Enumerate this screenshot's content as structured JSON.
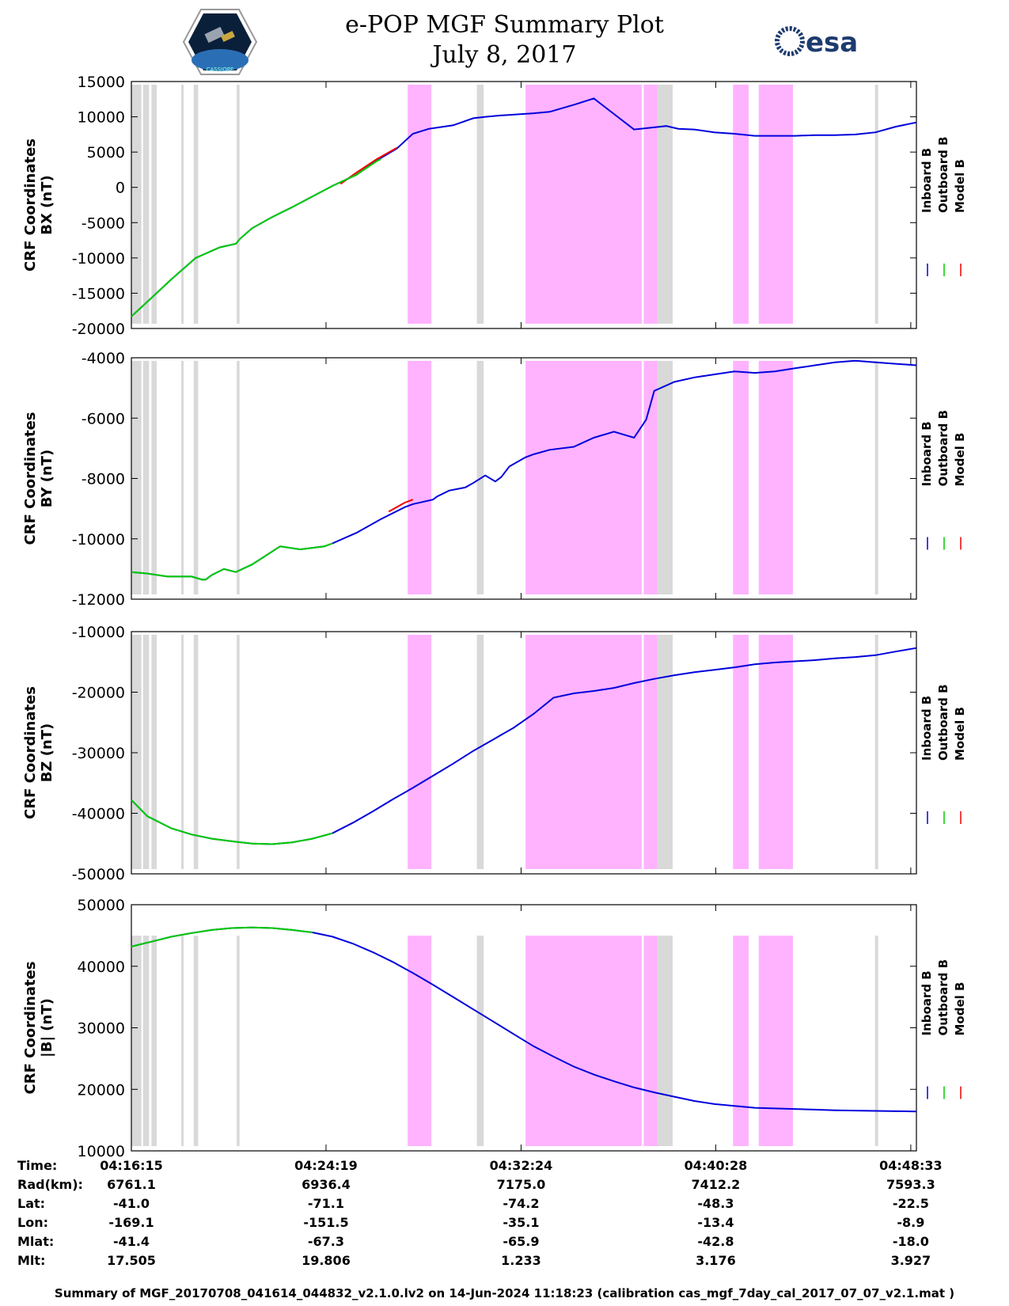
{
  "header": {
    "title_line1": "e-POP MGF Summary Plot",
    "title_line2": "July 8, 2017",
    "logo_left_text": "CASSIOPE",
    "logo_right_text": "esa"
  },
  "colors": {
    "inboard": "#0000dd",
    "outboard": "#00cc00",
    "model": "#ee0000",
    "gray_band": "#d9d9d9",
    "pink_band": "#ffb3ff"
  },
  "chart_data": {
    "type": "line",
    "x_unit": "seconds since 04:16:15",
    "x_range": [
      0,
      1952
    ],
    "gray_intervals": [
      [
        0,
        25
      ],
      [
        29,
        44
      ],
      [
        50,
        63
      ],
      [
        124,
        130
      ],
      [
        155,
        166
      ],
      [
        262,
        269
      ],
      [
        859,
        876
      ],
      [
        1308,
        1346
      ],
      [
        1849,
        1857
      ]
    ],
    "pink_intervals": [
      [
        687,
        746
      ],
      [
        980,
        1269
      ],
      [
        1274,
        1308
      ],
      [
        1496,
        1535
      ],
      [
        1560,
        1645
      ]
    ],
    "panels": [
      {
        "ylabel_line1": "CRF Coordinates",
        "ylabel_line2": "BX (nT)",
        "ylim": [
          -20000,
          15000
        ],
        "yticks": [
          15000,
          10000,
          5000,
          0,
          -5000,
          -10000,
          -15000,
          -20000
        ],
        "outboard_end": 620,
        "series": [
          {
            "name": "Inboard B",
            "x": [
              0,
              40,
              100,
              160,
              200,
              220,
              260,
              270,
              300,
              350,
              400,
              500,
              560,
              610,
              660,
              700,
              740,
              800,
              850,
              880,
              920,
              1000,
              1040,
              1100,
              1150,
              1200,
              1250,
              1300,
              1330,
              1360,
              1400,
              1450,
              1500,
              1550,
              1600,
              1650,
              1700,
              1750,
              1800,
              1850,
              1900,
              1952
            ],
            "y": [
              -18300,
              -16200,
              -13000,
              -10000,
              -9000,
              -8500,
              -8000,
              -7300,
              -5800,
              -4200,
              -2800,
              200,
              1800,
              3800,
              5500,
              7600,
              8300,
              8800,
              9800,
              10000,
              10200,
              10500,
              10700,
              11700,
              12600,
              10400,
              8200,
              8500,
              8700,
              8300,
              8200,
              7800,
              7600,
              7300,
              7300,
              7300,
              7400,
              7400,
              7500,
              7800,
              8600,
              9200
            ]
          },
          {
            "name": "Outboard B",
            "x": [
              0,
              40,
              100,
              160,
              200,
              220,
              260,
              270,
              300,
              350,
              400,
              500,
              560,
              610,
              620
            ],
            "y": [
              -18300,
              -16200,
              -13000,
              -10000,
              -9000,
              -8500,
              -8000,
              -7300,
              -5800,
              -4200,
              -2800,
              200,
              1800,
              3700,
              4000
            ]
          },
          {
            "name": "Model B",
            "x": [
              520,
              560,
              610,
              660
            ],
            "y": [
              500,
              2100,
              4000,
              5600
            ]
          }
        ]
      },
      {
        "ylabel_line1": "CRF Coordinates",
        "ylabel_line2": "BY (nT)",
        "ylim": [
          -12000,
          -4000
        ],
        "yticks": [
          -4000,
          -6000,
          -8000,
          -10000,
          -12000
        ],
        "outboard_end": 500,
        "series": [
          {
            "name": "Inboard B",
            "x": [
              0,
              40,
              90,
              150,
              175,
              185,
              200,
              230,
              260,
              300,
              370,
              420,
              480,
              500,
              560,
              620,
              680,
              700,
              750,
              760,
              790,
              830,
              850,
              880,
              905,
              920,
              940,
              980,
              1000,
              1040,
              1100,
              1150,
              1200,
              1250,
              1280,
              1300,
              1350,
              1400,
              1450,
              1500,
              1550,
              1600,
              1650,
              1700,
              1750,
              1800,
              1850,
              1900,
              1952
            ],
            "y": [
              -11100,
              -11150,
              -11250,
              -11250,
              -11350,
              -11350,
              -11200,
              -11000,
              -11100,
              -10850,
              -10250,
              -10350,
              -10250,
              -10150,
              -9800,
              -9350,
              -8950,
              -8850,
              -8700,
              -8600,
              -8400,
              -8300,
              -8150,
              -7900,
              -8100,
              -7950,
              -7600,
              -7300,
              -7200,
              -7050,
              -6950,
              -6650,
              -6450,
              -6650,
              -6050,
              -5100,
              -4800,
              -4650,
              -4550,
              -4450,
              -4500,
              -4450,
              -4350,
              -4250,
              -4150,
              -4100,
              -4150,
              -4200,
              -4250
            ]
          },
          {
            "name": "Outboard B",
            "x": [
              0,
              40,
              90,
              150,
              175,
              185,
              200,
              230,
              260,
              300,
              370,
              420,
              480,
              500
            ],
            "y": [
              -11100,
              -11150,
              -11250,
              -11250,
              -11350,
              -11350,
              -11200,
              -11000,
              -11100,
              -10850,
              -10250,
              -10350,
              -10250,
              -10150
            ]
          },
          {
            "name": "Model B",
            "x": [
              640,
              680,
              700
            ],
            "y": [
              -9100,
              -8800,
              -8700
            ]
          }
        ]
      },
      {
        "ylabel_line1": "CRF Coordinates",
        "ylabel_line2": "BZ (nT)",
        "ylim": [
          -50000,
          -10000
        ],
        "yticks": [
          -10000,
          -20000,
          -30000,
          -40000,
          -50000
        ],
        "outboard_end": 500,
        "series": [
          {
            "name": "Inboard B",
            "x": [
              0,
              40,
              100,
              150,
              200,
              260,
              300,
              350,
              400,
              450,
              500,
              550,
              600,
              650,
              700,
              750,
              800,
              850,
              900,
              950,
              1000,
              1050,
              1100,
              1150,
              1200,
              1250,
              1300,
              1350,
              1400,
              1450,
              1500,
              1550,
              1600,
              1650,
              1700,
              1750,
              1800,
              1850,
              1900,
              1952
            ],
            "y": [
              -37800,
              -40500,
              -42500,
              -43500,
              -44200,
              -44700,
              -45000,
              -45100,
              -44800,
              -44200,
              -43300,
              -41600,
              -39700,
              -37700,
              -35800,
              -33800,
              -31800,
              -29700,
              -27800,
              -25900,
              -23600,
              -20900,
              -20200,
              -19800,
              -19300,
              -18500,
              -17800,
              -17200,
              -16700,
              -16300,
              -15900,
              -15400,
              -15100,
              -14900,
              -14700,
              -14400,
              -14200,
              -13900,
              -13300,
              -12700
            ]
          },
          {
            "name": "Outboard B",
            "x": [
              0,
              40,
              100,
              150,
              200,
              260,
              300,
              350,
              400,
              450,
              500
            ],
            "y": [
              -37800,
              -40500,
              -42500,
              -43500,
              -44200,
              -44700,
              -45000,
              -45100,
              -44800,
              -44200,
              -43300
            ]
          },
          {
            "name": "Model B",
            "x": [],
            "y": []
          }
        ]
      },
      {
        "ylabel_line1": "CRF Coordinates",
        "ylabel_line2": "|B| (nT)",
        "ylim": [
          10000,
          50000
        ],
        "yticks": [
          50000,
          40000,
          30000,
          20000,
          10000
        ],
        "outboard_end": 450,
        "series": [
          {
            "name": "Inboard B",
            "x": [
              0,
              50,
              100,
              150,
              200,
              250,
              300,
              350,
              400,
              450,
              500,
              550,
              600,
              650,
              700,
              750,
              800,
              850,
              900,
              950,
              1000,
              1050,
              1100,
              1150,
              1200,
              1250,
              1300,
              1350,
              1400,
              1450,
              1500,
              1550,
              1600,
              1650,
              1700,
              1750,
              1800,
              1850,
              1900,
              1952
            ],
            "y": [
              43200,
              44000,
              44800,
              45400,
              45900,
              46200,
              46300,
              46200,
              45900,
              45500,
              44800,
              43700,
              42300,
              40700,
              38900,
              37000,
              35000,
              33000,
              31000,
              29000,
              27000,
              25300,
              23700,
              22400,
              21300,
              20300,
              19500,
              18800,
              18100,
              17600,
              17300,
              17000,
              16900,
              16800,
              16700,
              16600,
              16550,
              16500,
              16450,
              16400
            ]
          },
          {
            "name": "Outboard B",
            "x": [
              0,
              50,
              100,
              150,
              200,
              250,
              300,
              350,
              400,
              450
            ],
            "y": [
              43200,
              44000,
              44800,
              45400,
              45900,
              46200,
              46300,
              46200,
              45900,
              45500
            ]
          },
          {
            "name": "Model B",
            "x": [],
            "y": []
          }
        ]
      }
    ],
    "legend": [
      "Inboard B",
      "Outboard B",
      "Model B"
    ],
    "xticks": [
      0,
      484,
      969,
      1453,
      1938
    ]
  },
  "ephemeris": {
    "labels": [
      "Time:",
      "Rad(km):",
      "Lat:",
      "Lon:",
      "Mlat:",
      "Mlt:"
    ],
    "columns": [
      [
        "04:16:15",
        "6761.1",
        "-41.0",
        "-169.1",
        "-41.4",
        "17.505"
      ],
      [
        "04:24:19",
        "6936.4",
        "-71.1",
        "-151.5",
        "-67.3",
        "19.806"
      ],
      [
        "04:32:24",
        "7175.0",
        "-74.2",
        "-35.1",
        "-65.9",
        "1.233"
      ],
      [
        "04:40:28",
        "7412.2",
        "-48.3",
        "-13.4",
        "-42.8",
        "3.176"
      ],
      [
        "04:48:33",
        "7593.3",
        "-22.5",
        "-8.9",
        "-18.0",
        "3.927"
      ]
    ]
  },
  "footer": "Summary of MGF_20170708_041614_044832_v2.1.0.lv2 on 14-Jun-2024 11:18:23 (calibration cas_mgf_7day_cal_2017_07_07_v2.1.mat )"
}
